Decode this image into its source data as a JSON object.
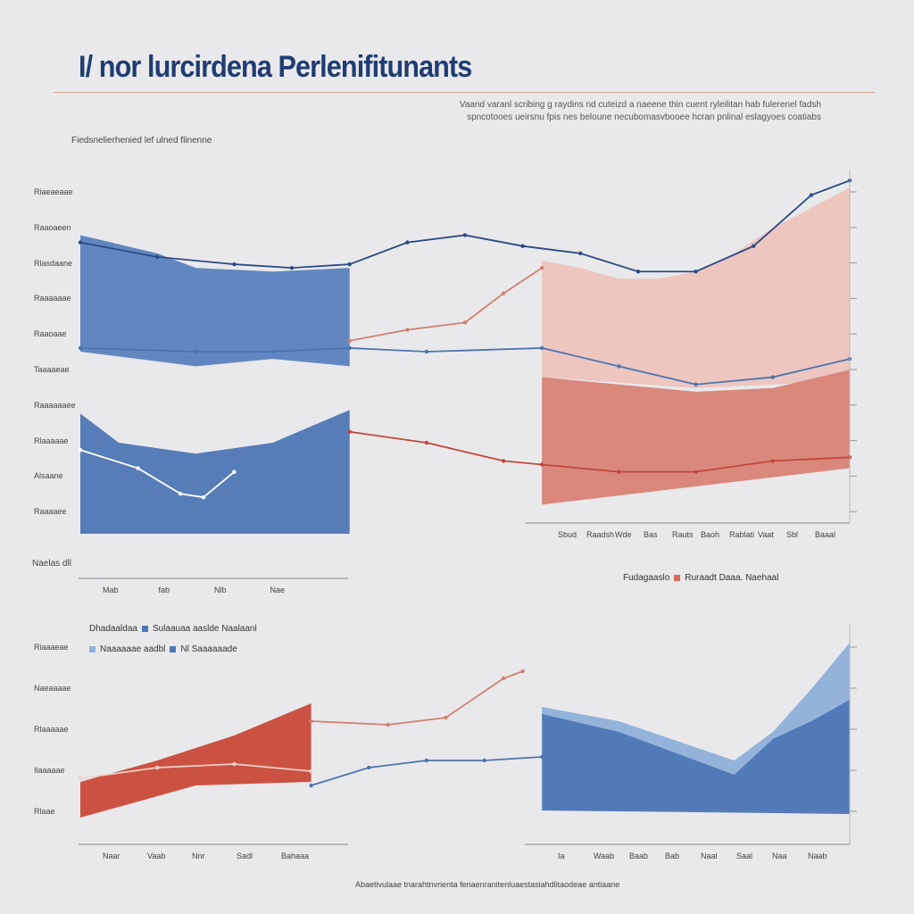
{
  "header": {
    "title": "I/ nor lurcirdena Perlenifitunants",
    "subtitle_lines": [
      "Vaand varanl scribing g raydins nd cuteizd a naeene thin cuent ryleilitan hab fulerenel fadsh",
      "spncotooes ueirsnu fpis nes beloune necubomasvbooee hcran pnlinal eslagyoes coatiabs"
    ],
    "note": "Fiedsnelierhenied lef ulned flinenne",
    "footer": "Abaetivulaae tnarahtnvrienta fenaenranitenluaestasiahdlitaodeae antiaane"
  },
  "colors": {
    "navy": "#2c4a86",
    "blue": "#5b82be",
    "light_blue": "#8fb0da",
    "pink": "#ecc4bd",
    "red": "#d4685a",
    "dark_red": "#c0483a"
  },
  "chart_data": [
    {
      "type": "area",
      "xlim": [
        0,
        20
      ],
      "ylim": [
        0,
        100
      ],
      "ytick_labels": [
        "Riaeaeaae",
        "Raaoaeen",
        "Rlasdaane",
        "Raaaaaae",
        "Raaoaae",
        "Taaaaeae",
        "Raaaaaaee",
        "Rlaaaaae",
        "Alsaane",
        "Raaaaee"
      ],
      "xtick_labels_left": [
        "Mab",
        "fab",
        "Nlb",
        "Nae"
      ],
      "xtick_labels_right": [
        "Sbud",
        "Raadsh",
        "Wde",
        "Bas",
        "Rauts",
        "Baoh",
        "Rablati",
        "Vaat",
        "Sbl",
        "Baaal"
      ],
      "axis_corner": "Naelas dll",
      "legend": {
        "title": "Fudagaaslo",
        "label": "Ruraadt Daaa. Naehaal"
      },
      "areas": [
        {
          "name": "",
          "color": "#5b82be",
          "top": [
            [
              0,
              82
            ],
            [
              2,
              77
            ],
            [
              3,
              73
            ],
            [
              5,
              72
            ],
            [
              7,
              73
            ]
          ],
          "bottom": [
            [
              7,
              46
            ],
            [
              5,
              48
            ],
            [
              3,
              46
            ],
            [
              0,
              50
            ]
          ]
        },
        {
          "name": "",
          "color": "#4f77b6",
          "top": [
            [
              0,
              33
            ],
            [
              1,
              25
            ],
            [
              3,
              22
            ],
            [
              5,
              25
            ],
            [
              7,
              34
            ]
          ],
          "bottom": [
            [
              7,
              0
            ],
            [
              0,
              0
            ]
          ]
        },
        {
          "name": "",
          "color": "#ecc4bd",
          "top": [
            [
              12,
              75
            ],
            [
              13,
              73
            ],
            [
              14,
              70
            ],
            [
              15,
              70
            ],
            [
              16,
              72
            ],
            [
              17,
              77
            ],
            [
              18,
              84
            ],
            [
              20,
              95
            ]
          ],
          "bottom": [
            [
              20,
              42
            ],
            [
              16,
              40
            ],
            [
              12,
              43
            ]
          ]
        },
        {
          "name": "",
          "color": "#d98376",
          "top": [
            [
              12,
              43
            ],
            [
              14,
              41
            ],
            [
              16,
              39
            ],
            [
              18,
              40
            ],
            [
              20,
              45
            ]
          ],
          "bottom": [
            [
              20,
              18
            ],
            [
              16,
              13
            ],
            [
              12,
              8
            ]
          ]
        }
      ],
      "lines": [
        {
          "color": "#2c4a86",
          "points": [
            [
              0,
              80
            ],
            [
              2,
              76
            ],
            [
              4,
              74
            ],
            [
              5.5,
              73
            ],
            [
              7,
              74
            ],
            [
              8.5,
              80
            ],
            [
              10,
              82
            ],
            [
              11.5,
              79
            ],
            [
              13,
              77
            ],
            [
              14.5,
              72
            ],
            [
              16,
              72
            ],
            [
              17.5,
              79
            ],
            [
              19,
              93
            ],
            [
              20,
              97
            ]
          ]
        },
        {
          "color": "#4d74b0",
          "points": [
            [
              0,
              51
            ],
            [
              3,
              50
            ],
            [
              5,
              50
            ],
            [
              7,
              51
            ],
            [
              9,
              50
            ],
            [
              12,
              51
            ],
            [
              14,
              46
            ],
            [
              16,
              41
            ],
            [
              18,
              43
            ],
            [
              20,
              48
            ]
          ]
        },
        {
          "color": "#d08070",
          "points": [
            [
              7,
              53
            ],
            [
              8.5,
              56
            ],
            [
              10,
              58
            ],
            [
              11,
              66
            ],
            [
              12,
              73
            ]
          ]
        },
        {
          "color": "#c0483a",
          "points": [
            [
              7,
              28
            ],
            [
              9,
              25
            ],
            [
              11,
              20
            ],
            [
              12,
              19
            ],
            [
              14,
              17
            ],
            [
              16,
              17
            ],
            [
              18,
              20
            ],
            [
              20,
              21
            ]
          ]
        },
        {
          "color": "#ffffff",
          "points": [
            [
              0,
              23
            ],
            [
              1.5,
              18
            ],
            [
              2.6,
              11
            ],
            [
              3.2,
              10
            ],
            [
              4,
              17
            ]
          ]
        }
      ]
    },
    {
      "type": "area",
      "xlim": [
        0,
        20
      ],
      "ylim": [
        0,
        60
      ],
      "ytick_labels": [
        "Riaaaeae",
        "Naeaaaae",
        "Rlaaaaae",
        "Ilaaaaae",
        "Rlaae"
      ],
      "xtick_labels_left": [
        "Naar",
        "Vaab",
        "Nnr",
        "Sadl",
        "Bahaaa"
      ],
      "xtick_labels_right": [
        "Ia",
        "Waab",
        "Baab",
        "Bab",
        "Naal",
        "Saal",
        "Naa",
        "Naab"
      ],
      "legend": {
        "title": "Dhadaaldaa",
        "items": [
          "Sulaauaa aaslde Naalaanl",
          "Naaaaaae aadbl",
          "Nl Saaaaaade"
        ]
      },
      "areas": [
        {
          "name": "",
          "color": "#c94a3a",
          "top": [
            [
              0,
              16
            ],
            [
              2,
              22
            ],
            [
              4,
              29
            ],
            [
              6,
              38
            ]
          ],
          "bottom": [
            [
              6,
              16
            ],
            [
              3,
              15
            ],
            [
              0,
              6
            ]
          ]
        },
        {
          "name": "",
          "color": "#8fb0da",
          "top": [
            [
              12,
              37
            ],
            [
              14,
              33
            ],
            [
              17,
              22
            ],
            [
              18,
              30
            ],
            [
              19,
              42
            ],
            [
              20,
              55
            ]
          ],
          "bottom": [
            [
              20,
              8
            ],
            [
              12,
              8
            ]
          ]
        },
        {
          "name": "",
          "color": "#4f77b6",
          "top": [
            [
              12,
              35
            ],
            [
              14,
              30
            ],
            [
              16,
              22
            ],
            [
              17,
              18
            ],
            [
              18,
              28
            ],
            [
              19,
              33
            ],
            [
              20,
              39
            ]
          ],
          "bottom": [
            [
              20,
              7
            ],
            [
              12,
              8
            ]
          ]
        }
      ],
      "lines": [
        {
          "color": "#d08070",
          "points": [
            [
              6,
              33
            ],
            [
              8,
              32
            ],
            [
              9.5,
              34
            ],
            [
              11,
              45
            ],
            [
              11.5,
              47
            ]
          ]
        },
        {
          "color": "#4d74b0",
          "points": [
            [
              6,
              15
            ],
            [
              7.5,
              20
            ],
            [
              9,
              22
            ],
            [
              10.5,
              22
            ],
            [
              12,
              23
            ]
          ]
        },
        {
          "color": "#f1d0c8",
          "points": [
            [
              0,
              17
            ],
            [
              2,
              20
            ],
            [
              4,
              21
            ],
            [
              6,
              19
            ]
          ]
        }
      ]
    }
  ]
}
